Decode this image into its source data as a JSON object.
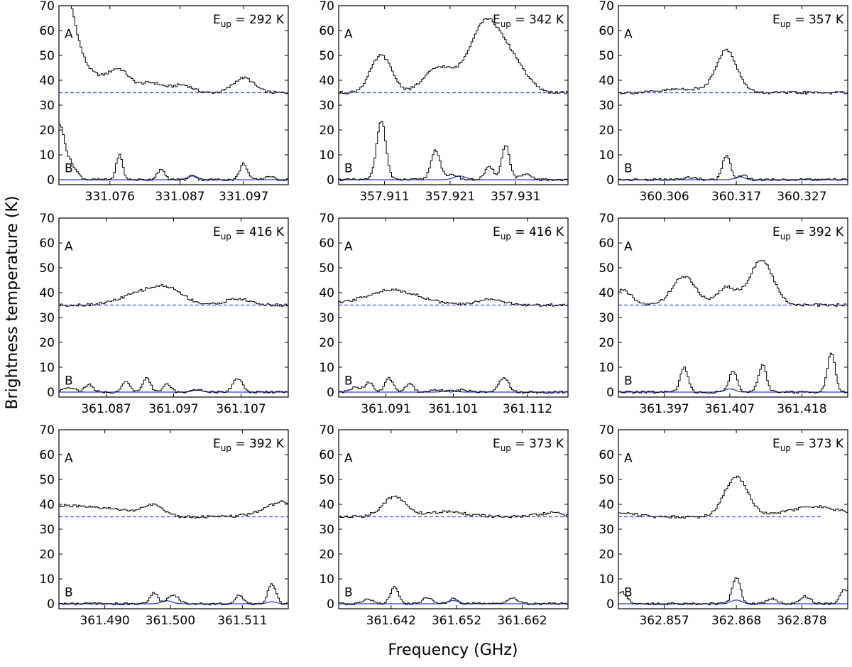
{
  "figure": {
    "ylabel": "Brightness temperature (K)",
    "xlabel": "Frequency (GHz)"
  },
  "chart_data": [
    {
      "type": "line",
      "eup_prefix": "E",
      "eup_sub": "up",
      "eup_suffix": " = 292 K",
      "xlim": [
        331.068,
        331.104
      ],
      "ylim": [
        -2,
        70
      ],
      "xticks": [
        "331.076",
        "331.087",
        "331.097"
      ],
      "yticks": [
        "0",
        "10",
        "20",
        "30",
        "40",
        "50",
        "60",
        "70"
      ],
      "spectra": [
        {
          "label": "A",
          "baseline": 35,
          "peaks": [
            [
              331.0685,
              40,
              0.0018
            ],
            [
              331.072,
              8,
              0.003
            ],
            [
              331.0775,
              8,
              0.0016
            ],
            [
              331.0825,
              4,
              0.002
            ],
            [
              331.0875,
              3,
              0.0015
            ],
            [
              331.097,
              6,
              0.0016
            ]
          ]
        },
        {
          "label": "B",
          "baseline": 0,
          "peaks": [
            [
              331.068,
              22,
              0.0009
            ],
            [
              331.07,
              5,
              0.0009
            ],
            [
              331.0775,
              10,
              0.0005
            ],
            [
              331.084,
              4,
              0.0006
            ],
            [
              331.089,
              2,
              0.0005
            ],
            [
              331.097,
              6.5,
              0.0006
            ],
            [
              331.101,
              1.5,
              0.0006
            ]
          ]
        }
      ],
      "model": {
        "A_level": 35,
        "B_peaks": [
          [
            331.089,
            1.5,
            0.0008
          ]
        ]
      }
    },
    {
      "type": "line",
      "eup_prefix": "E",
      "eup_sub": "up",
      "eup_suffix": " = 342 K",
      "xlim": [
        357.904,
        357.939
      ],
      "ylim": [
        -2,
        70
      ],
      "xticks": [
        "357.911",
        "357.921",
        "357.931"
      ],
      "yticks": [
        "0",
        "10",
        "20",
        "30",
        "40",
        "50",
        "60",
        "70"
      ],
      "spectra": [
        {
          "label": "A",
          "baseline": 35,
          "peaks": [
            [
              357.9105,
              15,
              0.0016
            ],
            [
              357.9193,
              10,
              0.0022
            ],
            [
              357.9265,
              29,
              0.0025
            ],
            [
              357.931,
              9,
              0.002
            ]
          ]
        },
        {
          "label": "B",
          "baseline": 0,
          "peaks": [
            [
              357.9105,
              24,
              0.0007
            ],
            [
              357.9188,
              12,
              0.0007
            ],
            [
              357.9215,
              2,
              0.0008
            ],
            [
              357.927,
              5,
              0.0007
            ],
            [
              357.9295,
              14,
              0.0006
            ],
            [
              357.9325,
              2,
              0.0009
            ]
          ]
        }
      ],
      "model": {
        "A_level": 35,
        "B_peaks": [
          [
            357.9225,
            1.5,
            0.0009
          ]
        ]
      }
    },
    {
      "type": "line",
      "eup_prefix": "E",
      "eup_sub": "up",
      "eup_suffix": " = 357 K",
      "xlim": [
        360.299,
        360.334
      ],
      "ylim": [
        -2,
        70
      ],
      "xticks": [
        "360.306",
        "360.317",
        "360.327"
      ],
      "yticks": [
        "0",
        "10",
        "20",
        "30",
        "40",
        "50",
        "60",
        "70"
      ],
      "spectra": [
        {
          "label": "A",
          "baseline": 35,
          "peaks": [
            [
              360.3155,
              17,
              0.0016
            ],
            [
              360.309,
              1.5,
              0.003
            ]
          ]
        },
        {
          "label": "B",
          "baseline": 0,
          "peaks": [
            [
              360.3155,
              10,
              0.0006
            ],
            [
              360.318,
              2,
              0.0006
            ],
            [
              360.31,
              1,
              0.0008
            ]
          ]
        }
      ],
      "model": {
        "A_level": 35,
        "B_peaks": [
          [
            360.3175,
            1.2,
            0.0007
          ]
        ]
      }
    },
    {
      "type": "line",
      "eup_prefix": "E",
      "eup_sub": "up",
      "eup_suffix": " = 416 K",
      "xlim": [
        361.08,
        361.114
      ],
      "ylim": [
        -2,
        70
      ],
      "xticks": [
        "361.087",
        "361.097",
        "361.107"
      ],
      "yticks": [
        "0",
        "10",
        "20",
        "30",
        "40",
        "50",
        "60",
        "70"
      ],
      "spectra": [
        {
          "label": "A",
          "baseline": 35,
          "peaks": [
            [
              361.0935,
              6,
              0.0035
            ],
            [
              361.0965,
              3,
              0.002
            ],
            [
              361.1065,
              2.5,
              0.0018
            ]
          ]
        },
        {
          "label": "B",
          "baseline": 0,
          "peaks": [
            [
              361.0815,
              2,
              0.0009
            ],
            [
              361.0845,
              3,
              0.0006
            ],
            [
              361.09,
              4,
              0.0006
            ],
            [
              361.093,
              5.5,
              0.0006
            ],
            [
              361.096,
              3,
              0.0006
            ],
            [
              361.1005,
              1,
              0.0008
            ],
            [
              361.1065,
              5.5,
              0.0007
            ]
          ]
        }
      ],
      "model": {
        "A_level": 35,
        "B_peaks": [
          [
            361.1005,
            0.8,
            0.0008
          ]
        ]
      }
    },
    {
      "type": "line",
      "eup_prefix": "E",
      "eup_sub": "up",
      "eup_suffix": " = 416 K",
      "xlim": [
        361.084,
        361.118
      ],
      "ylim": [
        -2,
        70
      ],
      "xticks": [
        "361.091",
        "361.101",
        "361.112"
      ],
      "yticks": [
        "0",
        "10",
        "20",
        "30",
        "40",
        "50",
        "60",
        "70"
      ],
      "spectra": [
        {
          "label": "A",
          "baseline": 35,
          "peaks": [
            [
              361.092,
              6,
              0.004
            ],
            [
              361.1065,
              2.5,
              0.0018
            ]
          ]
        },
        {
          "label": "B",
          "baseline": 0,
          "peaks": [
            [
              361.0865,
              2,
              0.0007
            ],
            [
              361.0885,
              4,
              0.0006
            ],
            [
              361.0915,
              5.5,
              0.0006
            ],
            [
              361.0945,
              3.5,
              0.0006
            ],
            [
              361.0985,
              1,
              0.0008
            ],
            [
              361.1025,
              1,
              0.0008
            ],
            [
              361.1085,
              6,
              0.0007
            ]
          ]
        }
      ],
      "model": {
        "A_level": 35,
        "B_peaks": [
          [
            361.1005,
            0.8,
            0.0008
          ]
        ]
      }
    },
    {
      "type": "line",
      "eup_prefix": "E",
      "eup_sub": "up",
      "eup_suffix": " = 392 K",
      "xlim": [
        361.39,
        361.425
      ],
      "ylim": [
        -2,
        70
      ],
      "xticks": [
        "361.397",
        "361.407",
        "361.418"
      ],
      "yticks": [
        "0",
        "10",
        "20",
        "30",
        "40",
        "50",
        "60",
        "70"
      ],
      "spectra": [
        {
          "label": "A",
          "baseline": 35,
          "peaks": [
            [
              361.3905,
              6,
              0.0015
            ],
            [
              361.4,
              11.5,
              0.0018
            ],
            [
              361.4065,
              7,
              0.0015
            ],
            [
              361.4118,
              18,
              0.0018
            ]
          ]
        },
        {
          "label": "B",
          "baseline": 0,
          "peaks": [
            [
              361.4,
              10,
              0.0006
            ],
            [
              361.4075,
              8.5,
              0.0006
            ],
            [
              361.412,
              11,
              0.0006
            ],
            [
              361.4225,
              16,
              0.0006
            ]
          ]
        }
      ],
      "model": {
        "A_level": 35,
        "B_peaks": [
          [
            361.407,
            1.3,
            0.0008
          ]
        ]
      }
    },
    {
      "type": "line",
      "eup_prefix": "E",
      "eup_sub": "up",
      "eup_suffix": " = 392 K",
      "xlim": [
        361.483,
        361.518
      ],
      "ylim": [
        -2,
        70
      ],
      "xticks": [
        "361.490",
        "361.500",
        "361.511"
      ],
      "yticks": [
        "0",
        "10",
        "20",
        "30",
        "40",
        "50",
        "60",
        "70"
      ],
      "spectra": [
        {
          "label": "A",
          "baseline": 35,
          "peaks": [
            [
              361.483,
              4,
              0.0035
            ],
            [
              361.491,
              3,
              0.004
            ],
            [
              361.4975,
              4,
              0.0015
            ],
            [
              361.5175,
              6,
              0.003
            ]
          ]
        },
        {
          "label": "B",
          "baseline": 0,
          "peaks": [
            [
              361.4975,
              4.5,
              0.0006
            ],
            [
              361.5005,
              3.5,
              0.0008
            ],
            [
              361.5105,
              3.5,
              0.0006
            ],
            [
              361.5155,
              8,
              0.0006
            ]
          ]
        }
      ],
      "model": {
        "A_level": 35,
        "B_peaks": [
          [
            361.4995,
            1.2,
            0.0008
          ],
          [
            361.5155,
            0.8,
            0.0007
          ]
        ]
      }
    },
    {
      "type": "line",
      "eup_prefix": "E",
      "eup_sub": "up",
      "eup_suffix": " = 373 K",
      "xlim": [
        361.634,
        361.669
      ],
      "ylim": [
        -2,
        70
      ],
      "xticks": [
        "361.642",
        "361.652",
        "361.662"
      ],
      "yticks": [
        "0",
        "10",
        "20",
        "30",
        "40",
        "50",
        "60",
        "70"
      ],
      "spectra": [
        {
          "label": "A",
          "baseline": 35,
          "peaks": [
            [
              361.6425,
              8,
              0.0018
            ],
            [
              361.6505,
              2,
              0.003
            ],
            [
              361.6665,
              1.5,
              0.002
            ]
          ]
        },
        {
          "label": "B",
          "baseline": 0,
          "peaks": [
            [
              361.6425,
              7,
              0.0006
            ],
            [
              361.6385,
              2,
              0.0008
            ],
            [
              361.6475,
              2.5,
              0.0007
            ],
            [
              361.6515,
              2,
              0.0006
            ],
            [
              361.6605,
              2.5,
              0.0008
            ]
          ]
        }
      ],
      "model": {
        "A_level": 35,
        "B_peaks": [
          [
            361.6515,
            1.3,
            0.0008
          ]
        ]
      }
    },
    {
      "type": "line",
      "eup_prefix": "E",
      "eup_sub": "up",
      "eup_suffix": " = 373 K",
      "xlim": [
        362.85,
        362.885
      ],
      "ylim": [
        -2,
        70
      ],
      "xticks": [
        "362.857",
        "362.868",
        "362.878"
      ],
      "yticks": [
        "0",
        "10",
        "20",
        "30",
        "40",
        "50",
        "60",
        "70"
      ],
      "spectra": [
        {
          "label": "A",
          "baseline": 35,
          "peaks": [
            [
              362.868,
              16,
              0.0018
            ],
            [
              362.88,
              4,
              0.004
            ],
            [
              362.851,
              1.5,
              0.002
            ]
          ]
        },
        {
          "label": "B",
          "baseline": 0,
          "peaks": [
            [
              362.868,
              11,
              0.0006
            ],
            [
              362.8505,
              5,
              0.0008
            ],
            [
              362.8735,
              2,
              0.0008
            ],
            [
              362.8785,
              3,
              0.0008
            ],
            [
              362.8845,
              6,
              0.0006
            ]
          ]
        }
      ],
      "model": {
        "A_level": 35,
        "A_xmax": 362.881,
        "B_peaks": [
          [
            362.868,
            1.5,
            0.0008
          ]
        ]
      }
    }
  ]
}
